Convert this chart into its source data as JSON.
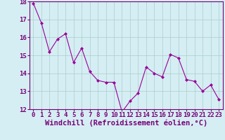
{
  "x": [
    0,
    1,
    2,
    3,
    4,
    5,
    6,
    7,
    8,
    9,
    10,
    11,
    12,
    13,
    14,
    15,
    16,
    17,
    18,
    19,
    20,
    21,
    22,
    23
  ],
  "y": [
    17.9,
    16.8,
    15.2,
    15.9,
    16.2,
    14.6,
    15.4,
    14.1,
    13.6,
    13.5,
    13.5,
    11.85,
    12.45,
    12.9,
    14.35,
    14.0,
    13.8,
    15.05,
    14.85,
    13.65,
    13.55,
    13.0,
    13.35,
    12.55
  ],
  "line_color": "#990099",
  "marker": "D",
  "marker_size": 2,
  "bg_color": "#d5eef3",
  "grid_color": "#aacccc",
  "xlabel": "Windchill (Refroidissement éolien,°C)",
  "ylim": [
    12,
    18
  ],
  "xlim": [
    -0.5,
    23.5
  ],
  "yticks": [
    12,
    13,
    14,
    15,
    16,
    17,
    18
  ],
  "xticks": [
    0,
    1,
    2,
    3,
    4,
    5,
    6,
    7,
    8,
    9,
    10,
    11,
    12,
    13,
    14,
    15,
    16,
    17,
    18,
    19,
    20,
    21,
    22,
    23
  ],
  "tick_label_fontsize": 6.5,
  "xlabel_fontsize": 7.5,
  "line_width": 0.8,
  "spine_color": "#770077"
}
